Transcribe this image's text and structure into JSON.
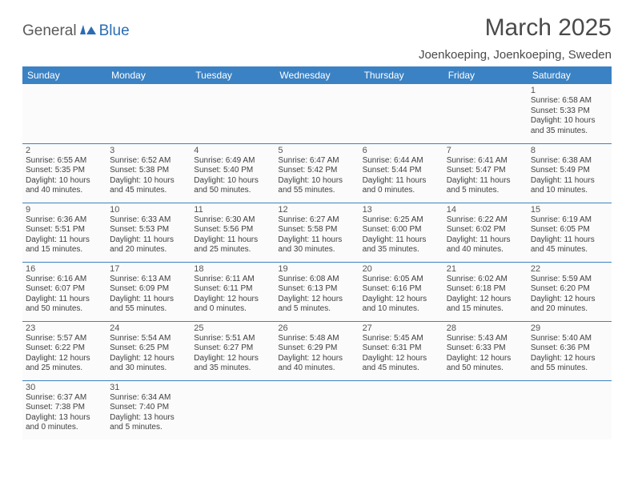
{
  "logo": {
    "text_a": "General",
    "text_b": "Blue"
  },
  "title": "March 2025",
  "location": "Joenkoeping, Joenkoeping, Sweden",
  "colors": {
    "header_bg": "#3b82c4",
    "header_text": "#ffffff",
    "cell_border": "#3b82c4",
    "cell_bg": "#fbfbfb",
    "body_text": "#404040",
    "logo_blue": "#2a6db5",
    "logo_gray": "#5a5a5a"
  },
  "day_headers": [
    "Sunday",
    "Monday",
    "Tuesday",
    "Wednesday",
    "Thursday",
    "Friday",
    "Saturday"
  ],
  "weeks": [
    [
      null,
      null,
      null,
      null,
      null,
      null,
      {
        "n": "1",
        "sr": "6:58 AM",
        "ss": "5:33 PM",
        "dl": "10 hours and 35 minutes."
      }
    ],
    [
      {
        "n": "2",
        "sr": "6:55 AM",
        "ss": "5:35 PM",
        "dl": "10 hours and 40 minutes."
      },
      {
        "n": "3",
        "sr": "6:52 AM",
        "ss": "5:38 PM",
        "dl": "10 hours and 45 minutes."
      },
      {
        "n": "4",
        "sr": "6:49 AM",
        "ss": "5:40 PM",
        "dl": "10 hours and 50 minutes."
      },
      {
        "n": "5",
        "sr": "6:47 AM",
        "ss": "5:42 PM",
        "dl": "10 hours and 55 minutes."
      },
      {
        "n": "6",
        "sr": "6:44 AM",
        "ss": "5:44 PM",
        "dl": "11 hours and 0 minutes."
      },
      {
        "n": "7",
        "sr": "6:41 AM",
        "ss": "5:47 PM",
        "dl": "11 hours and 5 minutes."
      },
      {
        "n": "8",
        "sr": "6:38 AM",
        "ss": "5:49 PM",
        "dl": "11 hours and 10 minutes."
      }
    ],
    [
      {
        "n": "9",
        "sr": "6:36 AM",
        "ss": "5:51 PM",
        "dl": "11 hours and 15 minutes."
      },
      {
        "n": "10",
        "sr": "6:33 AM",
        "ss": "5:53 PM",
        "dl": "11 hours and 20 minutes."
      },
      {
        "n": "11",
        "sr": "6:30 AM",
        "ss": "5:56 PM",
        "dl": "11 hours and 25 minutes."
      },
      {
        "n": "12",
        "sr": "6:27 AM",
        "ss": "5:58 PM",
        "dl": "11 hours and 30 minutes."
      },
      {
        "n": "13",
        "sr": "6:25 AM",
        "ss": "6:00 PM",
        "dl": "11 hours and 35 minutes."
      },
      {
        "n": "14",
        "sr": "6:22 AM",
        "ss": "6:02 PM",
        "dl": "11 hours and 40 minutes."
      },
      {
        "n": "15",
        "sr": "6:19 AM",
        "ss": "6:05 PM",
        "dl": "11 hours and 45 minutes."
      }
    ],
    [
      {
        "n": "16",
        "sr": "6:16 AM",
        "ss": "6:07 PM",
        "dl": "11 hours and 50 minutes."
      },
      {
        "n": "17",
        "sr": "6:13 AM",
        "ss": "6:09 PM",
        "dl": "11 hours and 55 minutes."
      },
      {
        "n": "18",
        "sr": "6:11 AM",
        "ss": "6:11 PM",
        "dl": "12 hours and 0 minutes."
      },
      {
        "n": "19",
        "sr": "6:08 AM",
        "ss": "6:13 PM",
        "dl": "12 hours and 5 minutes."
      },
      {
        "n": "20",
        "sr": "6:05 AM",
        "ss": "6:16 PM",
        "dl": "12 hours and 10 minutes."
      },
      {
        "n": "21",
        "sr": "6:02 AM",
        "ss": "6:18 PM",
        "dl": "12 hours and 15 minutes."
      },
      {
        "n": "22",
        "sr": "5:59 AM",
        "ss": "6:20 PM",
        "dl": "12 hours and 20 minutes."
      }
    ],
    [
      {
        "n": "23",
        "sr": "5:57 AM",
        "ss": "6:22 PM",
        "dl": "12 hours and 25 minutes."
      },
      {
        "n": "24",
        "sr": "5:54 AM",
        "ss": "6:25 PM",
        "dl": "12 hours and 30 minutes."
      },
      {
        "n": "25",
        "sr": "5:51 AM",
        "ss": "6:27 PM",
        "dl": "12 hours and 35 minutes."
      },
      {
        "n": "26",
        "sr": "5:48 AM",
        "ss": "6:29 PM",
        "dl": "12 hours and 40 minutes."
      },
      {
        "n": "27",
        "sr": "5:45 AM",
        "ss": "6:31 PM",
        "dl": "12 hours and 45 minutes."
      },
      {
        "n": "28",
        "sr": "5:43 AM",
        "ss": "6:33 PM",
        "dl": "12 hours and 50 minutes."
      },
      {
        "n": "29",
        "sr": "5:40 AM",
        "ss": "6:36 PM",
        "dl": "12 hours and 55 minutes."
      }
    ],
    [
      {
        "n": "30",
        "sr": "6:37 AM",
        "ss": "7:38 PM",
        "dl": "13 hours and 0 minutes."
      },
      {
        "n": "31",
        "sr": "6:34 AM",
        "ss": "7:40 PM",
        "dl": "13 hours and 5 minutes."
      },
      null,
      null,
      null,
      null,
      null
    ]
  ],
  "labels": {
    "sunrise": "Sunrise:",
    "sunset": "Sunset:",
    "daylight": "Daylight:"
  }
}
